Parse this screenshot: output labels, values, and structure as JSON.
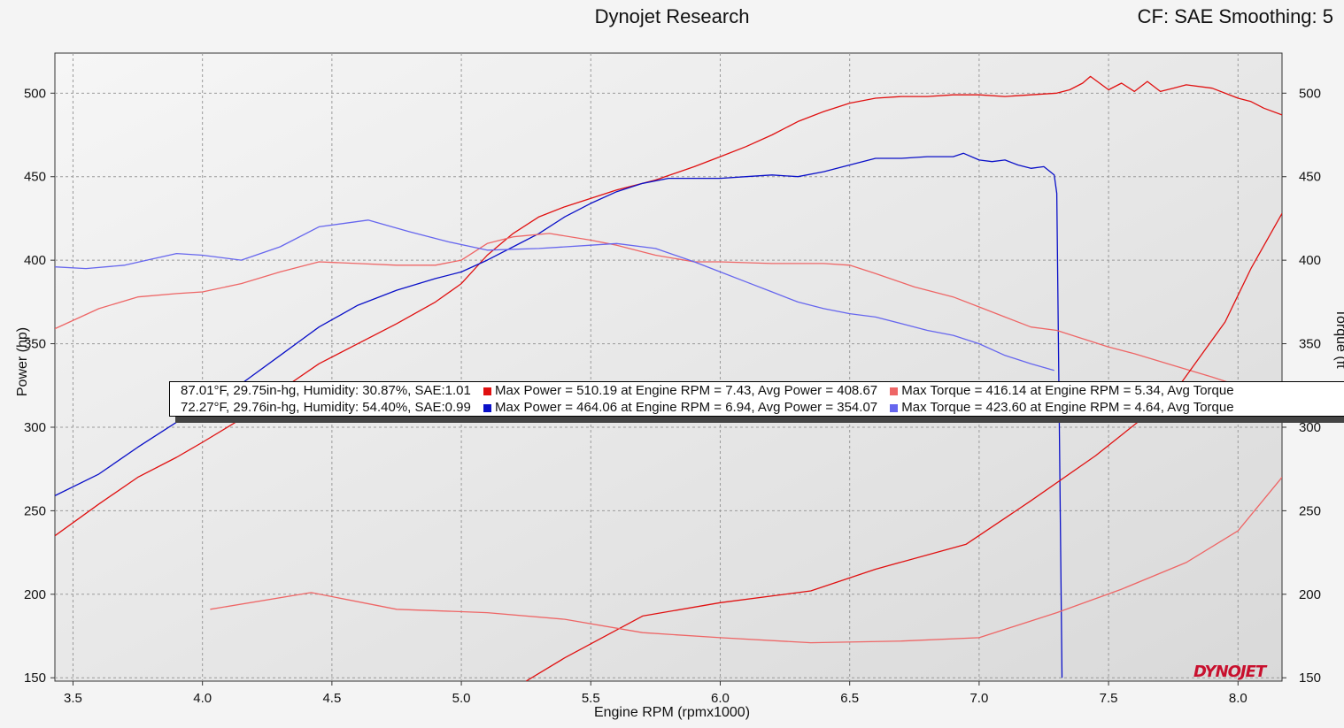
{
  "header": {
    "title": "Dynojet Research",
    "cf": "CF: SAE Smoothing: 5"
  },
  "logo_text": "DYNOJET",
  "legend": {
    "row1": {
      "conditions": "87.01°F, 29.75in-hg, Humidity: 30.87%, SAE:1.01",
      "power": "Max Power = 510.19 at Engine RPM = 7.43,  Avg Power = 408.67",
      "torque": "Max Torque = 416.14 at Engine RPM = 5.34,  Avg Torque",
      "power_color": "#e01010",
      "torque_color": "#ee6666"
    },
    "row2": {
      "conditions": "72.27°F, 29.76in-hg, Humidity: 54.40%, SAE:0.99",
      "power": "Max Power = 464.06 at Engine RPM = 6.94,  Avg Power = 354.07",
      "torque": "Max Torque = 423.60 at Engine RPM = 4.64,  Avg Torque",
      "power_color": "#0a10c8",
      "torque_color": "#6666ee"
    }
  },
  "chart_data": {
    "type": "line",
    "xlabel": "Engine RPM (rpmx1000)",
    "ylabel_left": "Power (hp)",
    "ylabel_right": "Torque (ft",
    "xlim": [
      3.43,
      8.17
    ],
    "ylim": [
      148,
      524
    ],
    "xticks": [
      "3.5",
      "4.0",
      "4.5",
      "5.0",
      "5.5",
      "6.0",
      "6.5",
      "7.0",
      "7.5",
      "8.0"
    ],
    "yticks": [
      "150",
      "200",
      "250",
      "300",
      "350",
      "400",
      "450",
      "500"
    ],
    "grid": true,
    "series": [
      {
        "color": "#e01010",
        "x": [
          3.43,
          3.6,
          3.75,
          3.9,
          4.0,
          4.15,
          4.3,
          4.45,
          4.6,
          4.75,
          4.9,
          5.0,
          5.1,
          5.2,
          5.3,
          5.4,
          5.5,
          5.6,
          5.75,
          5.9,
          6.0,
          6.1,
          6.2,
          6.3,
          6.4,
          6.5,
          6.6,
          6.7,
          6.8,
          6.9,
          7.0,
          7.1,
          7.2,
          7.3,
          7.35,
          7.4,
          7.43,
          7.5,
          7.55,
          7.6,
          7.65,
          7.7,
          7.75,
          7.8,
          7.9,
          8.0,
          8.05,
          8.1,
          8.17
        ],
        "values": [
          235,
          254,
          270,
          282,
          291,
          305,
          322,
          338,
          350,
          362,
          375,
          386,
          403,
          416,
          426,
          432,
          437,
          442,
          448,
          456,
          462,
          468,
          475,
          483,
          489,
          494,
          497,
          498,
          498,
          499,
          499,
          498,
          499,
          500,
          502,
          506,
          510,
          502,
          506,
          501,
          507,
          501,
          503,
          505,
          503,
          497,
          495,
          491,
          487
        ]
      },
      {
        "color": "#0a10c8",
        "x": [
          3.43,
          3.6,
          3.75,
          3.9,
          4.0,
          4.15,
          4.3,
          4.45,
          4.6,
          4.75,
          4.9,
          5.0,
          5.1,
          5.2,
          5.3,
          5.4,
          5.5,
          5.6,
          5.7,
          5.8,
          5.9,
          6.0,
          6.1,
          6.2,
          6.3,
          6.4,
          6.5,
          6.6,
          6.7,
          6.8,
          6.9,
          6.94,
          7.0,
          7.05,
          7.1,
          7.15,
          7.2,
          7.25,
          7.29,
          7.3,
          7.31,
          7.32
        ],
        "values": [
          259,
          272,
          288,
          303,
          311,
          326,
          343,
          360,
          373,
          382,
          389,
          393,
          400,
          408,
          416,
          426,
          434,
          441,
          446,
          449,
          449,
          449,
          450,
          451,
          450,
          453,
          457,
          461,
          461,
          462,
          462,
          464,
          460,
          459,
          460,
          457,
          455,
          456,
          451,
          440,
          300,
          150
        ]
      },
      {
        "color": "#ee6666",
        "x": [
          3.43,
          3.6,
          3.75,
          3.9,
          4.0,
          4.15,
          4.3,
          4.45,
          4.6,
          4.75,
          4.9,
          5.0,
          5.1,
          5.2,
          5.34,
          5.5,
          5.6,
          5.75,
          5.9,
          6.0,
          6.2,
          6.4,
          6.5,
          6.6,
          6.75,
          6.9,
          7.0,
          7.1,
          7.2,
          7.3,
          7.4,
          7.5,
          7.6,
          7.75,
          7.9,
          8.0,
          8.1,
          8.17
        ],
        "values": [
          359,
          371,
          378,
          380,
          381,
          386,
          393,
          399,
          398,
          397,
          397,
          400,
          410,
          414,
          416,
          412,
          409,
          403,
          399,
          399,
          398,
          398,
          397,
          392,
          384,
          378,
          372,
          366,
          360,
          358,
          353,
          348,
          344,
          337,
          330,
          325,
          320,
          318
        ]
      },
      {
        "color": "#6666ee",
        "x": [
          3.43,
          3.55,
          3.7,
          3.9,
          4.0,
          4.15,
          4.3,
          4.45,
          4.64,
          4.8,
          4.95,
          5.1,
          5.3,
          5.5,
          5.6,
          5.75,
          5.9,
          6.0,
          6.1,
          6.2,
          6.3,
          6.4,
          6.5,
          6.6,
          6.7,
          6.8,
          6.9,
          7.0,
          7.1,
          7.2,
          7.29
        ],
        "values": [
          396,
          395,
          397,
          404,
          403,
          400,
          408,
          420,
          424,
          417,
          411,
          406,
          407,
          409,
          410,
          407,
          399,
          393,
          387,
          381,
          375,
          371,
          368,
          366,
          362,
          358,
          355,
          350,
          343,
          338,
          334
        ]
      },
      {
        "color": "#e01010",
        "x": [
          5.25,
          5.4,
          5.7,
          6.0,
          6.35,
          6.6,
          6.95,
          7.2,
          7.45,
          7.75,
          7.95,
          8.05,
          8.17
        ],
        "values": [
          148,
          162,
          187,
          195,
          202,
          215,
          230,
          256,
          283,
          320,
          363,
          395,
          428
        ]
      },
      {
        "color": "#ee6666",
        "x": [
          4.03,
          4.42,
          4.75,
          5.1,
          5.4,
          5.7,
          6.0,
          6.35,
          6.7,
          7.0,
          7.3,
          7.55,
          7.8,
          8.0,
          8.17
        ],
        "values": [
          191,
          201,
          191,
          189,
          185,
          177,
          174,
          171,
          172,
          174,
          189,
          203,
          219,
          238,
          270
        ]
      }
    ]
  }
}
